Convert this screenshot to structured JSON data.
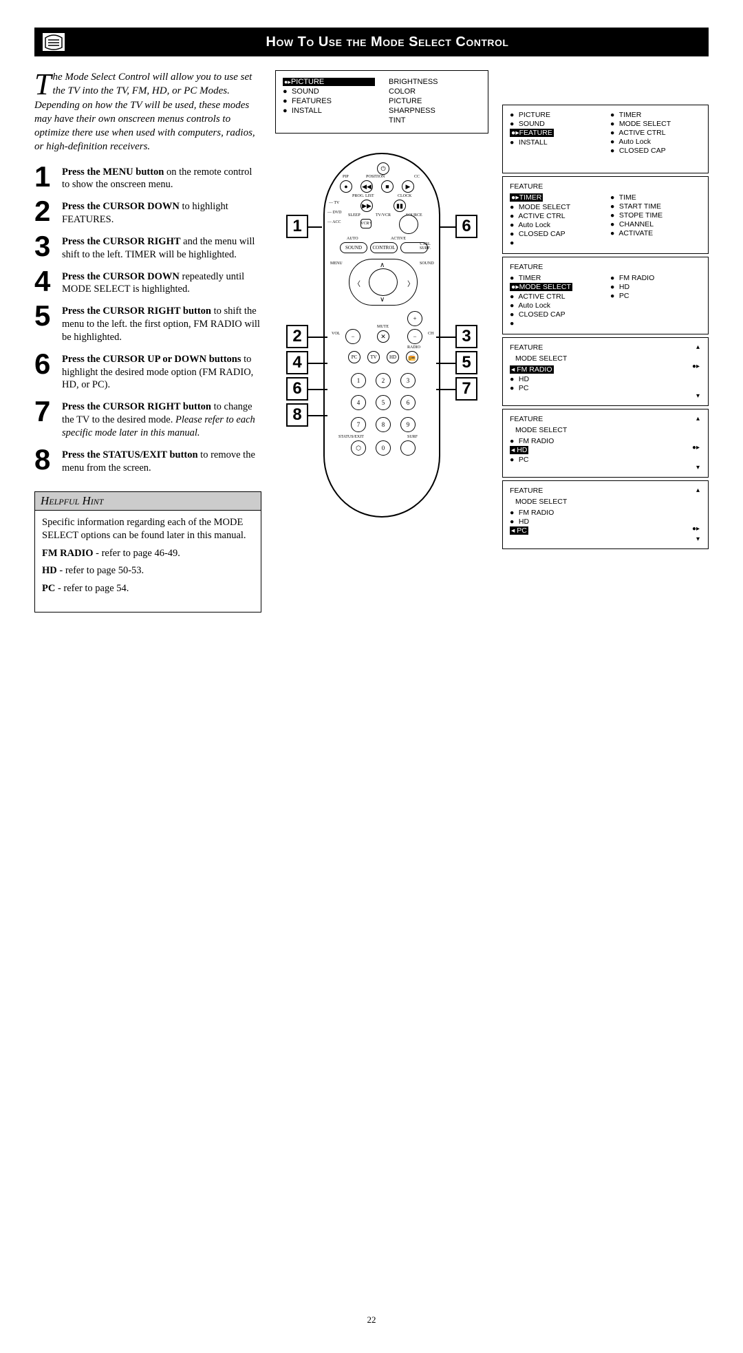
{
  "header": {
    "title": "How To Use the Mode Select Control"
  },
  "intro": {
    "dropcap": "T",
    "text": "he Mode Select Control will allow you to use set the TV into the TV, FM, HD, or PC Modes. Depending on how the TV will be used, these modes may have their own onscreen menus controls to optimize there use when used with computers, radios, or high-definition receivers."
  },
  "steps": [
    {
      "num": "1",
      "bold": "Press the MENU button",
      "rest": " on the remote control to show the onscreen menu."
    },
    {
      "num": "2",
      "bold": "Press the CURSOR DOWN",
      "rest": " to highlight FEATURES."
    },
    {
      "num": "3",
      "bold": "Press the CURSOR RIGHT",
      "rest": " and the menu will shift to the left. TIMER will be highlighted."
    },
    {
      "num": "4",
      "bold": "Press the CURSOR DOWN",
      "rest": " repeatedly until MODE SELECT is highlighted."
    },
    {
      "num": "5",
      "bold": "Press the CURSOR RIGHT button",
      "rest": " to shift the menu to the left. the first option, FM RADIO will be highlighted."
    },
    {
      "num": "6",
      "bold": "Press the CURSOR UP or DOWN buttons",
      "rest": " to highlight the desired mode option (FM RADIO, HD, or PC)."
    },
    {
      "num": "7",
      "bold": "Press the CURSOR RIGHT button",
      "rest": " to change the TV to the desired mode. ",
      "italic": "Please refer to each specific mode later in this manual."
    },
    {
      "num": "8",
      "bold": "Press the STATUS/EXIT button",
      "rest": " to remove the menu from the screen."
    }
  ],
  "hint": {
    "title": "Helpful Hint",
    "body": "Specific information regarding each of the MODE SELECT options can be found later in this manual.",
    "refs": [
      {
        "bold": "FM RADIO",
        "rest": " - refer to page 46-49."
      },
      {
        "bold": "HD",
        "rest": " - refer to page 50-53."
      },
      {
        "bold": "PC",
        "rest": " - refer to page 54."
      }
    ]
  },
  "top_menu": {
    "left": [
      {
        "label": "PICTURE",
        "hl": true
      },
      {
        "label": "SOUND"
      },
      {
        "label": "FEATURES"
      },
      {
        "label": "INSTALL"
      }
    ],
    "right": [
      "BRIGHTNESS",
      "COLOR",
      "PICTURE",
      "SHARPNESS",
      "TINT"
    ]
  },
  "panels": [
    {
      "title": "",
      "cols": [
        [
          {
            "label": "PICTURE"
          },
          {
            "label": "SOUND"
          },
          {
            "label": "FEATURE",
            "hl": true
          },
          {
            "label": "INSTALL"
          }
        ],
        [
          {
            "label": "TIMER"
          },
          {
            "label": "MODE SELECT"
          },
          {
            "label": "ACTIVE CTRL"
          },
          {
            "label": "Auto Lock"
          },
          {
            "label": "CLOSED CAP"
          }
        ]
      ],
      "showNav": false
    },
    {
      "title": "FEATURE",
      "cols": [
        [
          {
            "label": "TIMER",
            "hl": true
          },
          {
            "label": "MODE SELECT"
          },
          {
            "label": "ACTIVE CTRL"
          },
          {
            "label": "Auto Lock"
          },
          {
            "label": "CLOSED CAP"
          },
          {
            "label": ""
          }
        ],
        [
          {
            "label": "TIME"
          },
          {
            "label": "START TIME"
          },
          {
            "label": "STOPE TIME"
          },
          {
            "label": "CHANNEL"
          },
          {
            "label": "ACTIVATE"
          }
        ]
      ],
      "showNav": false
    },
    {
      "title": "FEATURE",
      "cols": [
        [
          {
            "label": "TIMER"
          },
          {
            "label": "MODE SELECT",
            "hl": true
          },
          {
            "label": "ACTIVE CTRL"
          },
          {
            "label": "Auto Lock"
          },
          {
            "label": "CLOSED CAP"
          },
          {
            "label": ""
          }
        ],
        [
          {
            "label": "FM RADIO"
          },
          {
            "label": "HD"
          },
          {
            "label": "PC"
          }
        ]
      ],
      "showNav": false
    },
    {
      "title": "FEATURE",
      "subtitle": "MODE SELECT",
      "cols": [
        [
          {
            "label": "FM RADIO",
            "hl": true,
            "leftArrow": true
          },
          {
            "label": "HD"
          },
          {
            "label": "PC"
          }
        ]
      ],
      "showNav": true,
      "arrowRow": 0
    },
    {
      "title": "FEATURE",
      "subtitle": "MODE SELECT",
      "cols": [
        [
          {
            "label": "FM RADIO"
          },
          {
            "label": "HD",
            "hl": true,
            "leftArrow": true
          },
          {
            "label": "PC"
          }
        ]
      ],
      "showNav": true,
      "arrowRow": 1
    },
    {
      "title": "FEATURE",
      "subtitle": "MODE SELECT",
      "cols": [
        [
          {
            "label": "FM RADIO"
          },
          {
            "label": "HD"
          },
          {
            "label": "PC",
            "hl": true,
            "leftArrow": true
          }
        ]
      ],
      "showNav": true,
      "arrowRow": 2
    }
  ],
  "callouts_left": [
    "2",
    "4",
    "6",
    "8"
  ],
  "callouts_right": [
    "3",
    "5",
    "7"
  ],
  "callout_top_left": "1",
  "callout_top_right": "6",
  "page_number": "22"
}
